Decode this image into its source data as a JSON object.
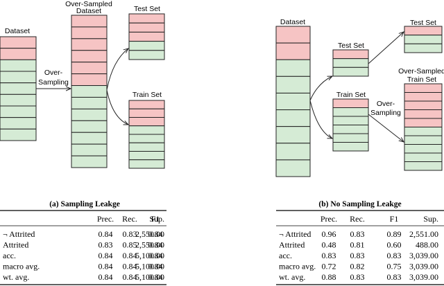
{
  "panels": [
    {
      "diagram": {
        "dataset": "Dataset",
        "oversampled_dataset": [
          "Over-Sampled",
          "Dataset"
        ],
        "test_set": "Test Set",
        "train_set": "Train Set",
        "oversampling": [
          "Over-",
          "Sampling"
        ]
      },
      "caption": "(a) Sampling Leakge",
      "table": {
        "header": [
          "Prec.",
          "Rec.",
          "F1",
          "Sup."
        ],
        "rows": [
          [
            "¬ Attrited",
            "0.84",
            "0.83",
            "0.84",
            "2,550.00"
          ],
          [
            "Attrited",
            "0.83",
            "0.85",
            "0.84",
            "2,550.00"
          ],
          [
            "acc.",
            "0.84",
            "0.84",
            "0.84",
            "5,100.00"
          ],
          [
            "macro avg.",
            "0.84",
            "0.84",
            "0.84",
            "5,100.00"
          ],
          [
            "wt. avg.",
            "0.84",
            "0.84",
            "0.84",
            "5,100.00"
          ]
        ]
      }
    },
    {
      "diagram": {
        "dataset": "Dataset",
        "test_set": "Test Set",
        "train_set": "Train Set",
        "final_test_set": "Test Set",
        "oversampled_train_set": [
          "Over-Sampled",
          "Train Set"
        ],
        "oversampling": [
          "Over-",
          "Sampling"
        ]
      },
      "caption": "(b) No Sampling Leakge",
      "table": {
        "header": [
          "Prec.",
          "Rec.",
          "F1",
          "Sup."
        ],
        "rows": [
          [
            "¬ Attrited",
            "0.96",
            "0.83",
            "0.89",
            "2,551.00"
          ],
          [
            "Attrited",
            "0.48",
            "0.81",
            "0.60",
            "488.00"
          ],
          [
            "acc.",
            "0.83",
            "0.83",
            "0.83",
            "3,039.00"
          ],
          [
            "macro avg.",
            "0.72",
            "0.82",
            "0.75",
            "3,039.00"
          ],
          [
            "wt. avg.",
            "0.88",
            "0.83",
            "0.83",
            "3,039.00"
          ]
        ]
      }
    }
  ]
}
